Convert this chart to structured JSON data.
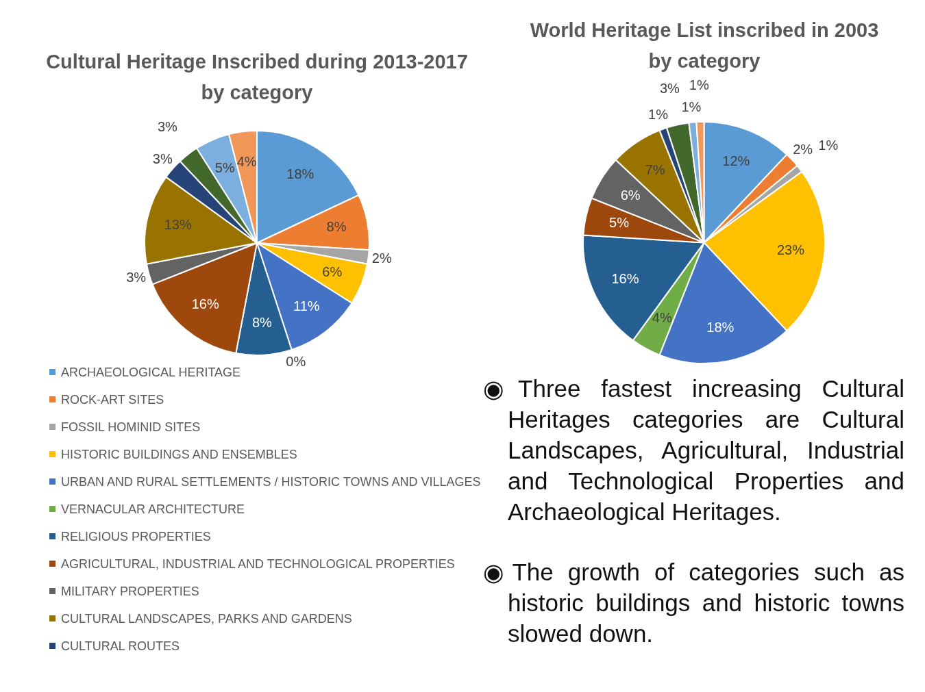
{
  "chart_data": [
    {
      "type": "pie",
      "title": "Cultural Heritage Inscribed during 2013-2017 by category",
      "legend": "bottom",
      "categories": [
        "ARCHAEOLOGICAL HERITAGE",
        "ROCK-ART SITES",
        "FOSSIL HOMINID SITES",
        "HISTORIC BUILDINGS AND ENSEMBLES",
        "URBAN AND RURAL SETTLEMENTS / HISTORIC TOWNS AND VILLAGES",
        "VERNACULAR ARCHITECTURE",
        "RELIGIOUS PROPERTIES",
        "AGRICULTURAL, INDUSTRIAL AND TECHNOLOGICAL PROPERTIES",
        "MILITARY PROPERTIES",
        "CULTURAL LANDSCAPES, PARKS AND GARDENS",
        "CULTURAL ROUTES",
        null,
        null,
        null
      ],
      "values": [
        18,
        8,
        2,
        6,
        11,
        0,
        8,
        16,
        3,
        13,
        3,
        3,
        5,
        4
      ],
      "value_labels": [
        "18%",
        "8%",
        "2%",
        "6%",
        "11%",
        "0%",
        "8%",
        "16%",
        "3%",
        "13%",
        "3%",
        "3%",
        "5%",
        "4%"
      ],
      "colors": [
        "#5b9bd5",
        "#ed7d31",
        "#a5a5a5",
        "#ffc000",
        "#4472c4",
        "#70ad47",
        "#255e91",
        "#9e480e",
        "#636363",
        "#997300",
        "#264478",
        "#43682b",
        "#7cafdd",
        "#f1975a"
      ]
    },
    {
      "type": "pie",
      "title": "World Heritage List inscribed in 2003 by category",
      "categories": [
        null,
        null,
        null,
        null,
        null,
        null,
        null,
        null,
        null,
        null,
        null,
        null,
        null,
        null
      ],
      "values": [
        12,
        2,
        1,
        23,
        18,
        4,
        16,
        5,
        6,
        7,
        1,
        3,
        1,
        1
      ],
      "value_labels": [
        "12%",
        "2%",
        "1%",
        "23%",
        "18%",
        "4%",
        "16%",
        "5%",
        "6%",
        "7%",
        "1%",
        "3%",
        "1%",
        "1%"
      ],
      "colors": [
        "#5b9bd5",
        "#ed7d31",
        "#a5a5a5",
        "#ffc000",
        "#4472c4",
        "#70ad47",
        "#255e91",
        "#9e480e",
        "#636363",
        "#997300",
        "#264478",
        "#43682b",
        "#7cafdd",
        "#f1975a"
      ]
    },
    {
      "type": "other",
      "annotations": [
        "◉Three fastest increasing Cultural Heritages categories are Cultural Landscapes, Agricultural, Industrial and Technological Properties and Archaeological Heritages.",
        "◉The growth of categories such as historic buildings and historic towns slowed down."
      ]
    }
  ]
}
